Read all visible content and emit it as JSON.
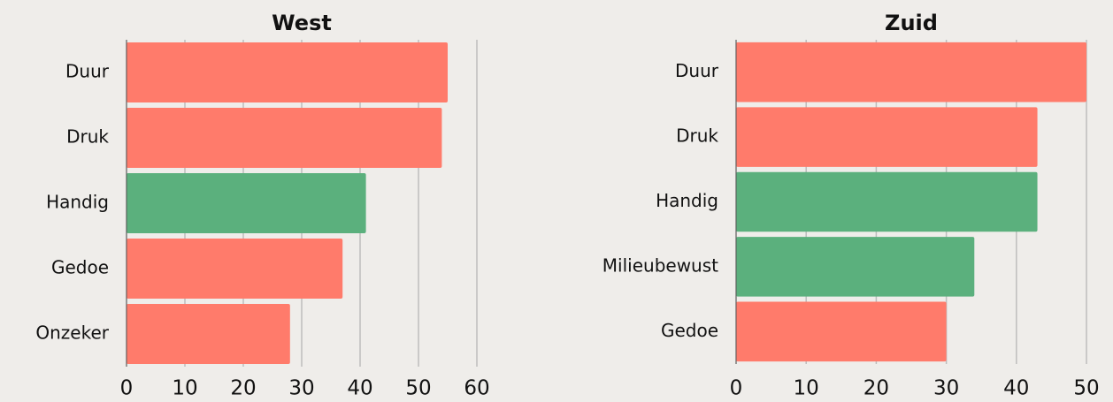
{
  "chart_data": [
    {
      "type": "bar",
      "orientation": "horizontal",
      "title": "West",
      "categories": [
        "Duur",
        "Druk",
        "Handig",
        "Gedoe",
        "Onzeker"
      ],
      "values": [
        55,
        54,
        41,
        37,
        28
      ],
      "colors": [
        "#ff7b6b",
        "#ff7b6b",
        "#5bb07d",
        "#ff7b6b",
        "#ff7b6b"
      ],
      "xlim": [
        0,
        60
      ],
      "xticks": [
        0,
        10,
        20,
        30,
        40,
        50,
        60
      ],
      "grid": true
    },
    {
      "type": "bar",
      "orientation": "horizontal",
      "title": "Zuid",
      "categories": [
        "Duur",
        "Druk",
        "Handig",
        "Milieubewust",
        "Gedoe"
      ],
      "values": [
        50,
        43,
        43,
        34,
        30
      ],
      "colors": [
        "#ff7b6b",
        "#ff7b6b",
        "#5bb07d",
        "#5bb07d",
        "#ff7b6b"
      ],
      "xlim": [
        0,
        50
      ],
      "xticks": [
        0,
        10,
        20,
        30,
        40,
        50
      ],
      "grid": true
    }
  ]
}
